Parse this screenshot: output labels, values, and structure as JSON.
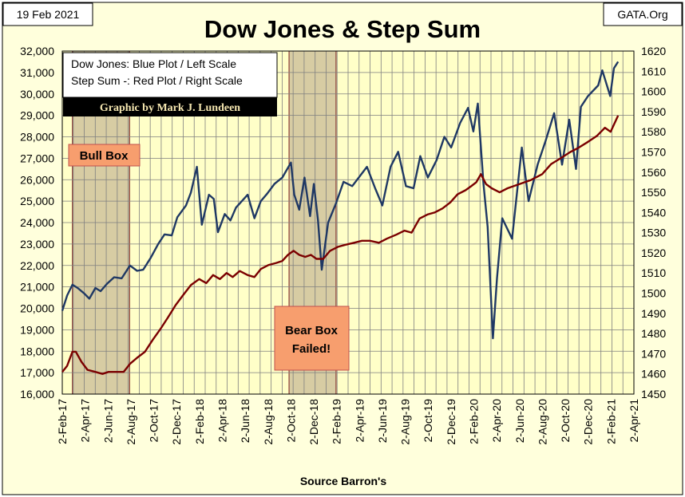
{
  "header": {
    "date": "19 Feb 2021",
    "title": "Dow Jones & Step Sum",
    "site": "GATA.Org"
  },
  "legend": {
    "line1": "Dow Jones: Blue Plot / Left Scale",
    "line2": "Step Sum -: Red Plot / Right Scale",
    "credit": "Graphic by Mark J. Lundeen"
  },
  "annotations": {
    "bull_box": "Bull Box",
    "bear_box_line1": "Bear Box",
    "bear_box_line2": "Failed!"
  },
  "footer": {
    "source": "Source Barron's"
  },
  "colors": {
    "dow": "#1f3864",
    "step_sum": "#7b0000",
    "plot_bg": "#ffffc8",
    "shade": "#d7cca3",
    "callout": "#f79e6e",
    "frame": "#ffffdc"
  },
  "chart_data": {
    "type": "line",
    "title": "Dow Jones & Step Sum",
    "xlabel": "Source Barron's",
    "left_axis": {
      "min": 16000,
      "max": 32000,
      "ticks": [
        "16,000",
        "17,000",
        "18,000",
        "19,000",
        "20,000",
        "21,000",
        "22,000",
        "23,000",
        "24,000",
        "25,000",
        "26,000",
        "27,000",
        "28,000",
        "29,000",
        "30,000",
        "31,000",
        "32,000"
      ]
    },
    "right_axis": {
      "min": 1450,
      "max": 1620,
      "ticks": [
        "1450",
        "1460",
        "1470",
        "1480",
        "1490",
        "1500",
        "1510",
        "1520",
        "1530",
        "1540",
        "1550",
        "1560",
        "1570",
        "1580",
        "1590",
        "1600",
        "1610",
        "1620"
      ]
    },
    "x_ticks": [
      "2-Feb-17",
      "2-Apr-17",
      "2-Jun-17",
      "2-Aug-17",
      "2-Oct-17",
      "2-Dec-17",
      "2-Feb-18",
      "2-Apr-18",
      "2-Jun-18",
      "2-Aug-18",
      "2-Oct-18",
      "2-Dec-18",
      "2-Feb-19",
      "2-Apr-19",
      "2-Jun-19",
      "2-Aug-19",
      "2-Oct-19",
      "2-Dec-19",
      "2-Feb-20",
      "2-Apr-20",
      "2-Jun-20",
      "2-Aug-20",
      "2-Oct-20",
      "2-Dec-20",
      "2-Feb-21",
      "2-Apr-21"
    ],
    "shaded_ranges": [
      {
        "name": "Bull Box",
        "from": "2017-03-01",
        "to": "2017-07-31"
      },
      {
        "name": "Bear Box Failed!",
        "from": "2018-09-28",
        "to": "2019-01-31"
      }
    ],
    "series": [
      {
        "name": "Dow Jones",
        "axis": "left",
        "points": [
          [
            "2017-02-02",
            19890
          ],
          [
            "2017-02-15",
            20600
          ],
          [
            "2017-03-01",
            21100
          ],
          [
            "2017-03-15",
            20950
          ],
          [
            "2017-04-01",
            20700
          ],
          [
            "2017-04-15",
            20450
          ],
          [
            "2017-05-01",
            20950
          ],
          [
            "2017-05-15",
            20800
          ],
          [
            "2017-06-01",
            21150
          ],
          [
            "2017-06-20",
            21450
          ],
          [
            "2017-07-10",
            21400
          ],
          [
            "2017-08-01",
            22000
          ],
          [
            "2017-08-20",
            21750
          ],
          [
            "2017-09-05",
            21800
          ],
          [
            "2017-09-25",
            22350
          ],
          [
            "2017-10-15",
            23000
          ],
          [
            "2017-11-01",
            23450
          ],
          [
            "2017-11-20",
            23400
          ],
          [
            "2017-12-05",
            24250
          ],
          [
            "2017-12-28",
            24800
          ],
          [
            "2018-01-10",
            25400
          ],
          [
            "2018-01-26",
            26600
          ],
          [
            "2018-02-08",
            23900
          ],
          [
            "2018-02-27",
            25300
          ],
          [
            "2018-03-12",
            25100
          ],
          [
            "2018-03-23",
            23550
          ],
          [
            "2018-04-10",
            24400
          ],
          [
            "2018-04-25",
            24100
          ],
          [
            "2018-05-10",
            24700
          ],
          [
            "2018-06-10",
            25300
          ],
          [
            "2018-06-28",
            24200
          ],
          [
            "2018-07-15",
            25000
          ],
          [
            "2018-08-01",
            25350
          ],
          [
            "2018-08-20",
            25800
          ],
          [
            "2018-09-10",
            26100
          ],
          [
            "2018-10-03",
            26800
          ],
          [
            "2018-10-12",
            25300
          ],
          [
            "2018-10-25",
            24600
          ],
          [
            "2018-11-08",
            26100
          ],
          [
            "2018-11-23",
            24300
          ],
          [
            "2018-12-03",
            25800
          ],
          [
            "2018-12-14",
            24100
          ],
          [
            "2018-12-24",
            21800
          ],
          [
            "2019-01-10",
            24000
          ],
          [
            "2019-01-31",
            24900
          ],
          [
            "2019-02-20",
            25900
          ],
          [
            "2019-03-15",
            25700
          ],
          [
            "2019-04-23",
            26600
          ],
          [
            "2019-05-15",
            25600
          ],
          [
            "2019-06-03",
            24800
          ],
          [
            "2019-06-25",
            26600
          ],
          [
            "2019-07-15",
            27300
          ],
          [
            "2019-08-05",
            25700
          ],
          [
            "2019-08-25",
            25600
          ],
          [
            "2019-09-12",
            27100
          ],
          [
            "2019-10-02",
            26100
          ],
          [
            "2019-10-25",
            26900
          ],
          [
            "2019-11-15",
            28000
          ],
          [
            "2019-12-03",
            27500
          ],
          [
            "2019-12-27",
            28650
          ],
          [
            "2020-01-17",
            29350
          ],
          [
            "2020-01-31",
            28250
          ],
          [
            "2020-02-12",
            29550
          ],
          [
            "2020-02-27",
            25800
          ],
          [
            "2020-03-09",
            23800
          ],
          [
            "2020-03-23",
            18600
          ],
          [
            "2020-04-03",
            21400
          ],
          [
            "2020-04-17",
            24200
          ],
          [
            "2020-05-13",
            23250
          ],
          [
            "2020-06-08",
            27500
          ],
          [
            "2020-06-26",
            25000
          ],
          [
            "2020-07-20",
            26700
          ],
          [
            "2020-08-10",
            27800
          ],
          [
            "2020-09-02",
            29100
          ],
          [
            "2020-09-23",
            26700
          ],
          [
            "2020-10-12",
            28800
          ],
          [
            "2020-10-30",
            26500
          ],
          [
            "2020-11-12",
            29400
          ],
          [
            "2020-12-01",
            29900
          ],
          [
            "2020-12-28",
            30400
          ],
          [
            "2021-01-08",
            31100
          ],
          [
            "2021-01-29",
            29900
          ],
          [
            "2021-02-08",
            31200
          ],
          [
            "2021-02-19",
            31500
          ]
        ]
      },
      {
        "name": "Step Sum",
        "axis": "right",
        "points": [
          [
            "2017-02-02",
            1461
          ],
          [
            "2017-02-15",
            1464
          ],
          [
            "2017-03-01",
            1471
          ],
          [
            "2017-03-10",
            1471
          ],
          [
            "2017-03-25",
            1466
          ],
          [
            "2017-04-10",
            1462
          ],
          [
            "2017-05-01",
            1461
          ],
          [
            "2017-05-20",
            1460
          ],
          [
            "2017-06-05",
            1461
          ],
          [
            "2017-06-25",
            1461
          ],
          [
            "2017-07-15",
            1461
          ],
          [
            "2017-08-01",
            1465
          ],
          [
            "2017-08-20",
            1468
          ],
          [
            "2017-09-10",
            1471
          ],
          [
            "2017-10-01",
            1477
          ],
          [
            "2017-10-20",
            1482
          ],
          [
            "2017-11-10",
            1488
          ],
          [
            "2017-11-30",
            1494
          ],
          [
            "2017-12-20",
            1499
          ],
          [
            "2018-01-10",
            1504
          ],
          [
            "2018-02-01",
            1507
          ],
          [
            "2018-02-20",
            1505
          ],
          [
            "2018-03-10",
            1509
          ],
          [
            "2018-03-28",
            1507
          ],
          [
            "2018-04-15",
            1510
          ],
          [
            "2018-05-01",
            1508
          ],
          [
            "2018-05-20",
            1511
          ],
          [
            "2018-06-10",
            1509
          ],
          [
            "2018-06-28",
            1508
          ],
          [
            "2018-07-15",
            1512
          ],
          [
            "2018-08-05",
            1514
          ],
          [
            "2018-08-25",
            1515
          ],
          [
            "2018-09-10",
            1516
          ],
          [
            "2018-09-25",
            1519
          ],
          [
            "2018-10-10",
            1521
          ],
          [
            "2018-10-25",
            1519
          ],
          [
            "2018-11-10",
            1518
          ],
          [
            "2018-11-25",
            1519
          ],
          [
            "2018-12-10",
            1517
          ],
          [
            "2018-12-28",
            1517
          ],
          [
            "2019-01-15",
            1521
          ],
          [
            "2019-02-05",
            1523
          ],
          [
            "2019-02-25",
            1524
          ],
          [
            "2019-03-20",
            1525
          ],
          [
            "2019-04-10",
            1526
          ],
          [
            "2019-05-01",
            1526
          ],
          [
            "2019-05-25",
            1525
          ],
          [
            "2019-06-15",
            1527
          ],
          [
            "2019-07-10",
            1529
          ],
          [
            "2019-08-01",
            1531
          ],
          [
            "2019-08-20",
            1530
          ],
          [
            "2019-09-10",
            1537
          ],
          [
            "2019-10-01",
            1539
          ],
          [
            "2019-10-20",
            1540
          ],
          [
            "2019-11-10",
            1542
          ],
          [
            "2019-12-01",
            1545
          ],
          [
            "2019-12-20",
            1549
          ],
          [
            "2020-01-10",
            1551
          ],
          [
            "2020-01-25",
            1553
          ],
          [
            "2020-02-08",
            1555
          ],
          [
            "2020-02-20",
            1559
          ],
          [
            "2020-03-05",
            1554
          ],
          [
            "2020-03-20",
            1552
          ],
          [
            "2020-04-10",
            1550
          ],
          [
            "2020-05-01",
            1552
          ],
          [
            "2020-06-01",
            1554
          ],
          [
            "2020-07-01",
            1556
          ],
          [
            "2020-08-01",
            1559
          ],
          [
            "2020-08-25",
            1564
          ],
          [
            "2020-09-20",
            1567
          ],
          [
            "2020-10-15",
            1570
          ],
          [
            "2020-11-05",
            1572
          ],
          [
            "2020-12-01",
            1575
          ],
          [
            "2020-12-25",
            1578
          ],
          [
            "2021-01-15",
            1582
          ],
          [
            "2021-01-30",
            1580
          ],
          [
            "2021-02-19",
            1588
          ]
        ]
      }
    ],
    "grid": true,
    "legend_position": "top-left"
  }
}
